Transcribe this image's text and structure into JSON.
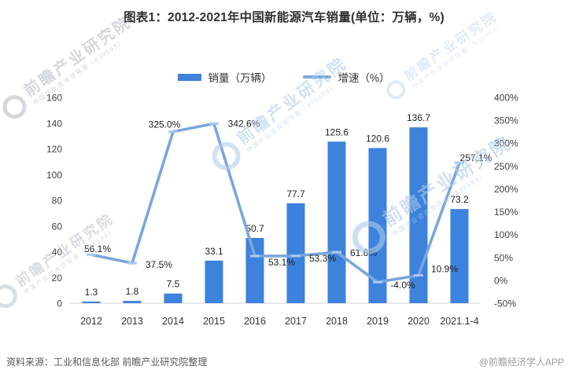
{
  "title": "图表1：2012-2021年中国新能源汽车销量(单位：万辆，%)",
  "legend": {
    "bar_label": "销量（万辆）",
    "line_label": "增速（%）"
  },
  "colors": {
    "bar": "#3d82dc",
    "line": "#7ba6db",
    "line_marker": "#aac8eb",
    "axis_line": "#d9d9d9",
    "tick_text": "#404040",
    "data_label_text": "#1f1f1f",
    "watermark_gray": "#b1bac4",
    "watermark_blue": "#aecbe9"
  },
  "chart_data": {
    "type": "bar+line combo",
    "categories": [
      "2012",
      "2013",
      "2014",
      "2015",
      "2016",
      "2017",
      "2018",
      "2019",
      "2020",
      "2021.1-4"
    ],
    "series": [
      {
        "name": "销量（万辆）",
        "type": "bar",
        "axis": "left",
        "values": [
          1.3,
          1.8,
          7.5,
          33.1,
          50.7,
          77.7,
          125.6,
          120.6,
          136.7,
          73.2
        ],
        "labels": [
          "1.3",
          "1.8",
          "7.5",
          "33.1",
          "50.7",
          "77.7",
          "125.6",
          "120.6",
          "136.7",
          "73.2"
        ]
      },
      {
        "name": "增速（%）",
        "type": "line",
        "axis": "right",
        "values": [
          56.1,
          37.5,
          325.0,
          342.6,
          53.1,
          53.3,
          61.6,
          -4.0,
          10.9,
          257.1
        ],
        "labels": [
          "56.1%",
          "37.5%",
          "325.0%",
          "342.6%",
          "53.1%",
          "53.3%",
          "61.6%",
          "-4.0%",
          "10.9%",
          "257.1%"
        ],
        "label_offsets": [
          [
            8,
            -3
          ],
          [
            34,
            6
          ],
          [
            -11,
            -5
          ],
          [
            38,
            4
          ],
          [
            34,
            12
          ],
          [
            34,
            7
          ],
          [
            34,
            5
          ],
          [
            32,
            8
          ],
          [
            33,
            -4
          ],
          [
            21,
            -2
          ]
        ]
      }
    ],
    "left_axis": {
      "min": 0,
      "max": 160,
      "tick_step": 20,
      "tick_labels": [
        "0",
        "20",
        "40",
        "60",
        "80",
        "100",
        "120",
        "140",
        "160"
      ]
    },
    "right_axis": {
      "min": -50,
      "max": 400,
      "tick_step": 50,
      "tick_labels": [
        "-50%",
        "0%",
        "50%",
        "100%",
        "150%",
        "200%",
        "250%",
        "300%",
        "350%",
        "400%"
      ]
    },
    "grid": "none (baseline only)",
    "legend_position": "top-center"
  },
  "watermark": {
    "text": "前瞻产业研究院",
    "subtext": "中国产业咨询领导者（839599）"
  },
  "footer": {
    "source": "资料来源：工业和信息化部 前瞻产业研究院整理",
    "credit": "@前瞻经济学人APP"
  }
}
